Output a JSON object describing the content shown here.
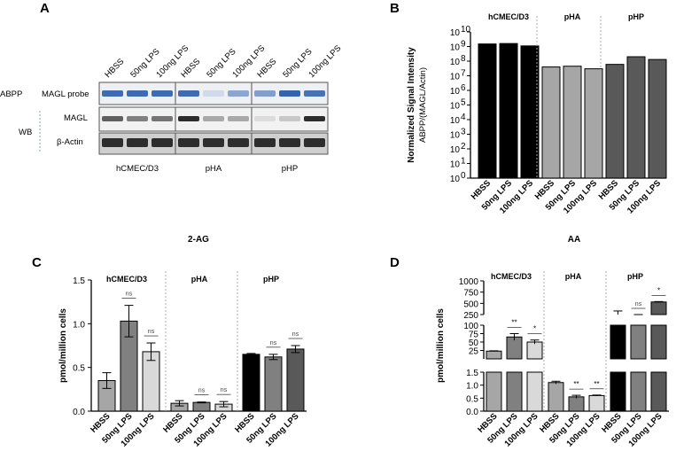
{
  "panels": {
    "A": "A",
    "B": "B",
    "C": "C",
    "D": "D"
  },
  "blot": {
    "lane_labels": [
      "HBSS",
      "50ng LPS",
      "100ng LPS"
    ],
    "row_abpp": "ABPP",
    "row_wb": "WB",
    "row_probe": "MAGL probe",
    "row_magl": "MAGL",
    "row_actin": "β-Actin",
    "groups": [
      "hCMEC/D3",
      "pHA",
      "pHP"
    ]
  },
  "chart_data": [
    {
      "panel": "B",
      "type": "bar",
      "ylabel_line1": "Normalized Signal Intensity",
      "ylabel_line2": "ABPP/(MAGL/Actin)",
      "yscale": "log",
      "ylim": [
        1,
        10000000000
      ],
      "yticks": [
        "10",
        "10",
        "10",
        "10",
        "10",
        "10",
        "10",
        "10",
        "10",
        "10",
        "10"
      ],
      "ytick_exponents": [
        "0",
        "1",
        "2",
        "3",
        "4",
        "5",
        "6",
        "7",
        "8",
        "9",
        "10"
      ],
      "groups": [
        "hCMEC/D3",
        "pHA",
        "pHP"
      ],
      "categories": [
        "HBSS",
        "50ng LPS",
        "100ng LPS"
      ],
      "values": [
        [
          1500000000,
          1600000000,
          1100000000
        ],
        [
          40000000,
          45000000,
          30000000
        ],
        [
          60000000,
          200000000,
          130000000
        ]
      ],
      "colors": [
        "#000000",
        "#a6a6a6",
        "#595959"
      ]
    },
    {
      "panel": "C",
      "type": "bar",
      "title": "2-AG",
      "ylabel": "pmol/million cells",
      "ylim": [
        0,
        1.5
      ],
      "yticks": [
        "0.0",
        "0.5",
        "1.0",
        "1.5"
      ],
      "groups": [
        "hCMEC/D3",
        "pHA",
        "pHP"
      ],
      "categories": [
        "HBSS",
        "50ng LPS",
        "100ng LPS"
      ],
      "values": [
        [
          0.35,
          1.03,
          0.68
        ],
        [
          0.09,
          0.1,
          0.08
        ],
        [
          0.65,
          0.62,
          0.71
        ]
      ],
      "errors": [
        [
          0.09,
          0.18,
          0.1
        ],
        [
          0.03,
          0.005,
          0.03
        ],
        [
          0.01,
          0.03,
          0.04
        ]
      ],
      "annotations": [
        [
          "",
          "ns",
          "ns"
        ],
        [
          "",
          "ns",
          "ns"
        ],
        [
          "",
          "ns",
          "ns"
        ]
      ],
      "colors": [
        [
          "#a6a6a6",
          "#808080",
          "#d9d9d9"
        ],
        [
          "#a6a6a6",
          "#808080",
          "#d9d9d9"
        ],
        [
          "#000000",
          "#808080",
          "#595959"
        ]
      ]
    },
    {
      "panel": "D",
      "type": "bar",
      "title": "AA",
      "ylabel": "pmol/million cells",
      "yaxis_segments": [
        {
          "range": [
            0,
            1.5
          ],
          "ticks": [
            "0.0",
            "0.5",
            "1.0",
            "1.5"
          ]
        },
        {
          "range": [
            0,
            100
          ],
          "ticks": [
            "25",
            "50",
            "75",
            "100"
          ]
        },
        {
          "range": [
            250,
            1000
          ],
          "ticks": [
            "250",
            "500",
            "750",
            "1000"
          ]
        }
      ],
      "groups": [
        "hCMEC/D3",
        "pHA",
        "pHP"
      ],
      "categories": [
        "HBSS",
        "50ng LPS",
        "100ng LPS"
      ],
      "values": [
        [
          23,
          65,
          50
        ],
        [
          1.1,
          0.55,
          0.6
        ],
        [
          250,
          200,
          530
        ]
      ],
      "errors": [
        [
          1,
          10,
          6
        ],
        [
          0.05,
          0.06,
          0.02
        ],
        [
          80,
          20,
          10
        ]
      ],
      "annotations": [
        [
          "",
          "**",
          "*"
        ],
        [
          "",
          "**",
          "**"
        ],
        [
          "",
          "ns",
          "*"
        ]
      ],
      "colors": [
        [
          "#a6a6a6",
          "#808080",
          "#d9d9d9"
        ],
        [
          "#a6a6a6",
          "#808080",
          "#d9d9d9"
        ],
        [
          "#000000",
          "#808080",
          "#595959"
        ]
      ]
    }
  ]
}
